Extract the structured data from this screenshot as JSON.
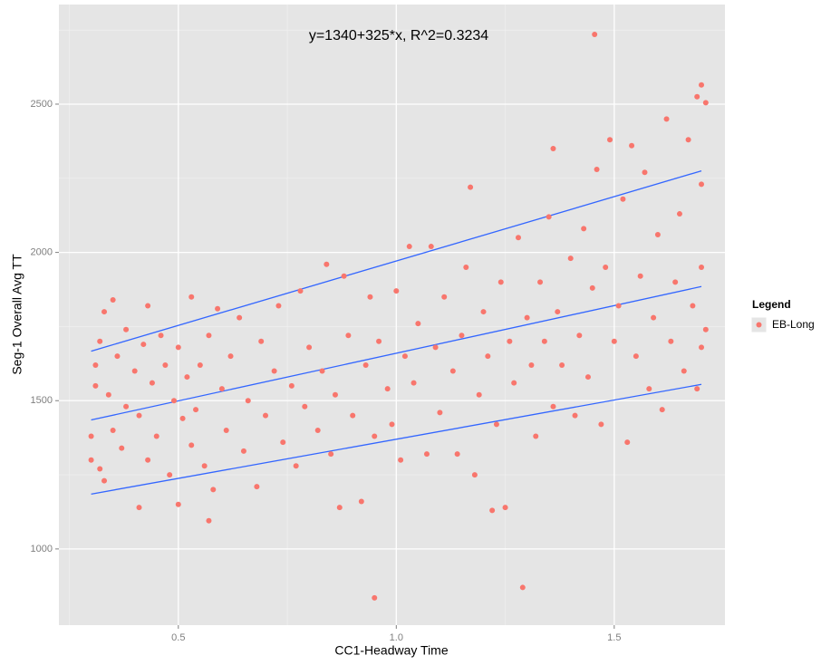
{
  "chart_data": {
    "type": "scatter",
    "annotation": "y=1340+325*x, R^2=0.3234",
    "x_label": "CC1-Headway Time",
    "y_label": "Seg-1 Overall Avg TT",
    "legend_title": "Legend",
    "legend_position": "right",
    "grid": true,
    "xlim": [
      0.226,
      1.754
    ],
    "ylim": [
      743,
      2836
    ],
    "xticks": [
      0.5,
      {
        "value": 1,
        "label": "1.0"
      },
      1.5
    ],
    "yticks": [
      1000,
      1500,
      2000,
      2500
    ],
    "x_minor_grid": [
      0.25,
      0.75,
      1.25
    ],
    "y_minor_grid": [
      1250,
      1750,
      2250,
      2750
    ],
    "x": [
      0.3,
      0.3,
      0.31,
      0.31,
      0.32,
      0.32,
      0.33,
      0.33,
      0.34,
      0.35,
      0.35,
      0.36,
      0.37,
      0.38,
      0.38,
      0.4,
      0.41,
      0.41,
      0.42,
      0.43,
      0.43,
      0.44,
      0.45,
      0.46,
      0.47,
      0.48,
      0.49,
      0.5,
      0.5,
      0.51,
      0.52,
      0.53,
      0.53,
      0.54,
      0.55,
      0.56,
      0.57,
      0.57,
      0.58,
      0.59,
      0.6,
      0.61,
      0.62,
      0.64,
      0.65,
      0.66,
      0.68,
      0.69,
      0.7,
      0.72,
      0.73,
      0.74,
      0.76,
      0.77,
      0.78,
      0.79,
      0.8,
      0.82,
      0.83,
      0.84,
      0.85,
      0.86,
      0.87,
      0.88,
      0.89,
      0.9,
      0.92,
      0.93,
      0.94,
      0.95,
      0.95,
      0.96,
      0.98,
      0.99,
      1.0,
      1.01,
      1.02,
      1.03,
      1.04,
      1.05,
      1.07,
      1.08,
      1.09,
      1.1,
      1.11,
      1.13,
      1.14,
      1.15,
      1.16,
      1.17,
      1.18,
      1.19,
      1.2,
      1.21,
      1.22,
      1.23,
      1.24,
      1.25,
      1.26,
      1.27,
      1.28,
      1.29,
      1.3,
      1.31,
      1.32,
      1.33,
      1.34,
      1.35,
      1.36,
      1.36,
      1.37,
      1.38,
      1.4,
      1.41,
      1.42,
      1.43,
      1.44,
      1.45,
      1.455,
      1.46,
      1.47,
      1.48,
      1.49,
      1.5,
      1.51,
      1.52,
      1.53,
      1.54,
      1.55,
      1.56,
      1.57,
      1.58,
      1.59,
      1.6,
      1.61,
      1.62,
      1.63,
      1.64,
      1.65,
      1.66,
      1.67,
      1.68,
      1.69,
      1.69,
      1.7,
      1.7,
      1.7,
      1.7,
      1.71,
      1.71
    ],
    "series": [
      {
        "name": "EB-Long",
        "color": "#f8766d",
        "values": [
          1380,
          1300,
          1620,
          1550,
          1700,
          1270,
          1800,
          1230,
          1520,
          1840,
          1400,
          1650,
          1340,
          1740,
          1480,
          1600,
          1140,
          1450,
          1690,
          1820,
          1300,
          1560,
          1380,
          1720,
          1620,
          1250,
          1500,
          1150,
          1680,
          1440,
          1580,
          1850,
          1350,
          1470,
          1620,
          1280,
          1095,
          1720,
          1200,
          1810,
          1540,
          1400,
          1650,
          1780,
          1330,
          1500,
          1210,
          1700,
          1450,
          1600,
          1820,
          1360,
          1550,
          1280,
          1870,
          1480,
          1680,
          1400,
          1600,
          1960,
          1320,
          1520,
          1140,
          1920,
          1720,
          1450,
          1160,
          1620,
          1850,
          835,
          1380,
          1700,
          1540,
          1420,
          1870,
          1300,
          1650,
          2020,
          1560,
          1760,
          1320,
          2020,
          1680,
          1460,
          1850,
          1600,
          1320,
          1720,
          1950,
          2220,
          1250,
          1520,
          1800,
          1650,
          1130,
          1420,
          1900,
          1140,
          1700,
          1560,
          2050,
          870,
          1780,
          1620,
          1380,
          1900,
          1700,
          2120,
          2350,
          1480,
          1800,
          1620,
          1980,
          1450,
          1720,
          2080,
          1580,
          1880,
          2735,
          2280,
          1420,
          1950,
          2380,
          1700,
          1820,
          2180,
          1360,
          2360,
          1650,
          1920,
          2270,
          1540,
          1780,
          2060,
          1470,
          2450,
          1700,
          1900,
          2130,
          1600,
          2380,
          1820,
          2525,
          1540,
          2565,
          2230,
          1950,
          1680,
          2505,
          1740
        ]
      }
    ],
    "fit_lines": [
      {
        "color": "#3366ff",
        "x": [
          0.3,
          1.7
        ],
        "y": [
          1667,
          2275
        ]
      },
      {
        "color": "#3366ff",
        "x": [
          0.3,
          1.7
        ],
        "y": [
          1435,
          1885
        ]
      },
      {
        "color": "#3366ff",
        "x": [
          0.3,
          1.7
        ],
        "y": [
          1185,
          1555
        ]
      }
    ]
  }
}
